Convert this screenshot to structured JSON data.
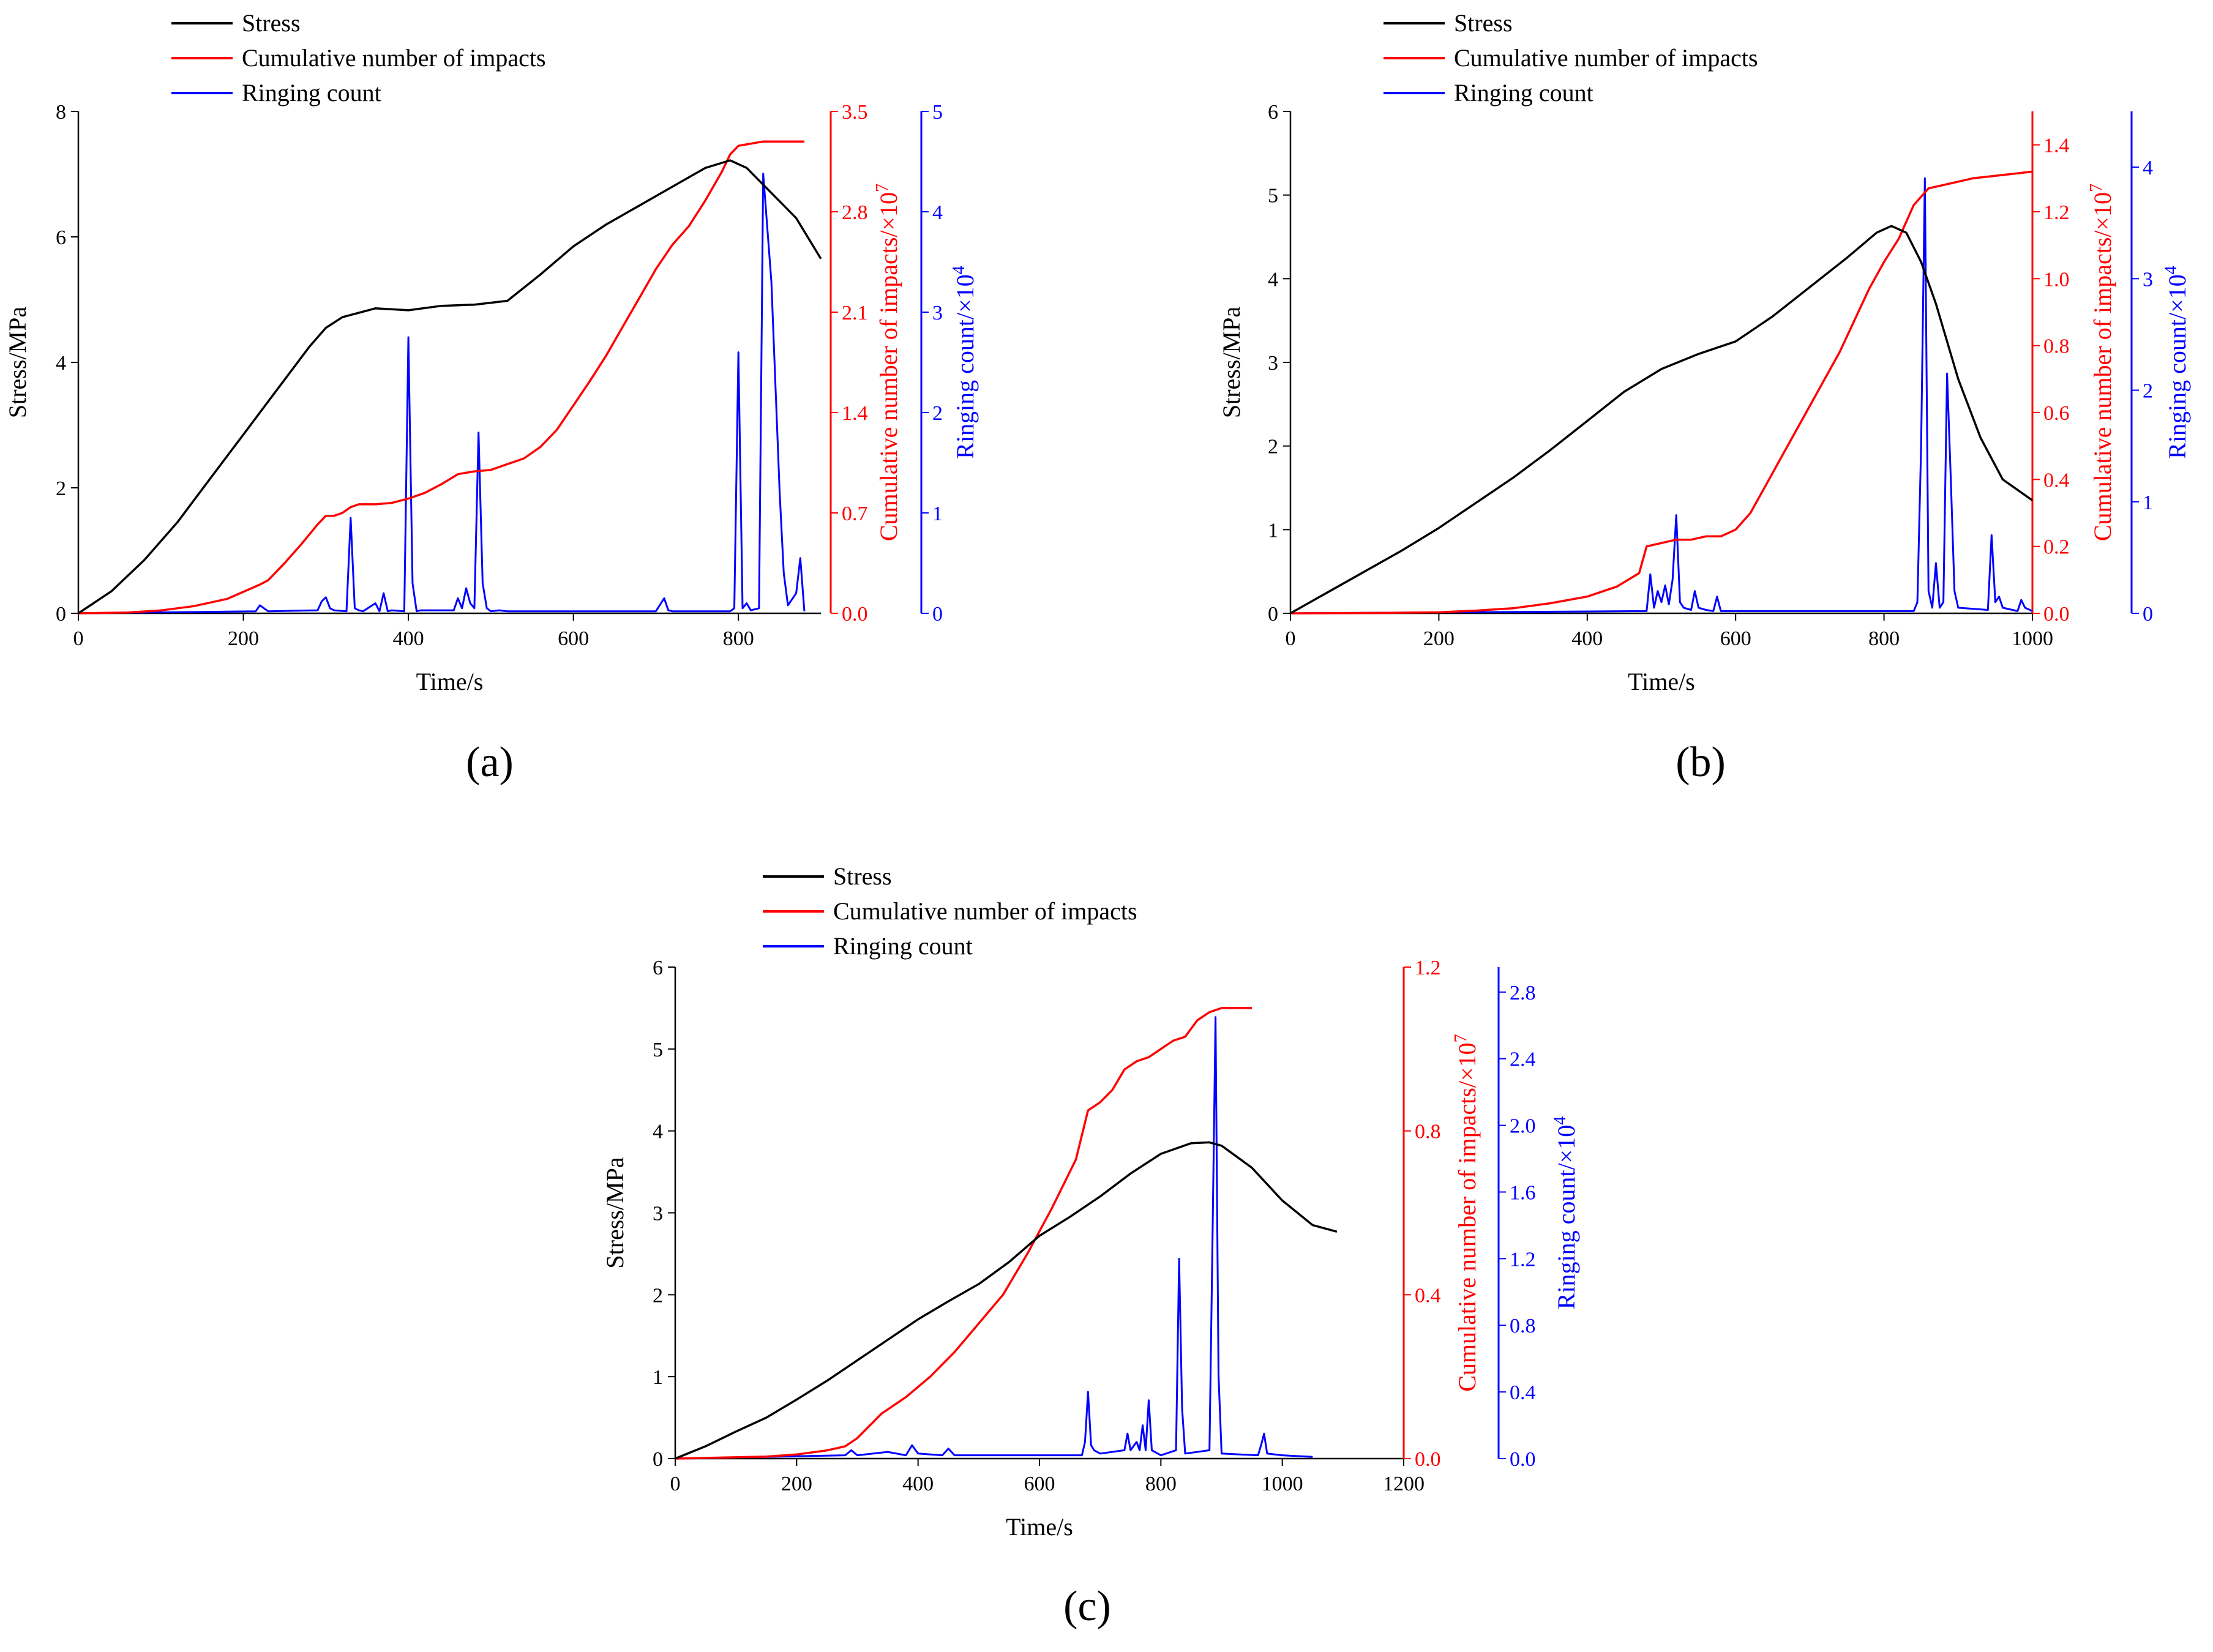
{
  "figure": {
    "legend_labels": [
      "Stress",
      "Cumulative number of impacts",
      "Ringing count"
    ],
    "colors": {
      "stress": "#000000",
      "impacts": "#ff0000",
      "ringing": "#0000ff"
    }
  },
  "chart_data": [
    {
      "type": "line",
      "panel": "(a)",
      "xlabel": "Time/s",
      "ylabel_left": "Stress/MPa",
      "ylabel_right1": "Cumulative number of impacts/×10",
      "ylabel_right1_sup": "7",
      "ylabel_right2": "Ringing count/×10",
      "ylabel_right2_sup": "4",
      "xlim": [
        0,
        900
      ],
      "xticks": [
        0,
        200,
        400,
        600,
        800
      ],
      "xtick_labels": [
        "0",
        "200",
        "400",
        "600",
        "800"
      ],
      "y_left_lim": [
        0,
        8
      ],
      "y_left_ticks": [
        0,
        2,
        4,
        6,
        8
      ],
      "y_left_tick_labels": [
        "0",
        "2",
        "4",
        "6",
        "8"
      ],
      "y_r1_lim": [
        0,
        3.5
      ],
      "y_r1_ticks": [
        0,
        0.7,
        1.4,
        2.1,
        2.8,
        3.5
      ],
      "y_r1_tick_labels": [
        "0.0",
        "0.7",
        "1.4",
        "2.1",
        "2.8",
        "3.5"
      ],
      "y_r2_lim": [
        0,
        5
      ],
      "y_r2_ticks": [
        0,
        1,
        2,
        3,
        4,
        5
      ],
      "y_r2_tick_labels": [
        "0",
        "1",
        "2",
        "3",
        "4",
        "5"
      ],
      "series": [
        {
          "name": "Stress",
          "axis": "left",
          "x": [
            0,
            40,
            80,
            120,
            160,
            200,
            240,
            280,
            300,
            320,
            360,
            400,
            440,
            480,
            520,
            560,
            600,
            640,
            680,
            720,
            760,
            790,
            810,
            840,
            870,
            900
          ],
          "y": [
            0,
            0.35,
            0.85,
            1.45,
            2.15,
            2.85,
            3.55,
            4.25,
            4.55,
            4.72,
            4.86,
            4.83,
            4.9,
            4.92,
            4.98,
            5.4,
            5.85,
            6.2,
            6.5,
            6.8,
            7.1,
            7.22,
            7.1,
            6.7,
            6.3,
            5.65
          ]
        },
        {
          "name": "Cumulative number of impacts",
          "axis": "right1",
          "x": [
            0,
            60,
            100,
            140,
            180,
            200,
            220,
            230,
            250,
            270,
            290,
            300,
            310,
            320,
            330,
            340,
            360,
            380,
            400,
            420,
            440,
            460,
            480,
            500,
            520,
            540,
            560,
            580,
            600,
            620,
            640,
            660,
            680,
            700,
            720,
            740,
            760,
            780,
            790,
            800,
            810,
            830,
            850,
            880
          ],
          "y": [
            0,
            0.005,
            0.02,
            0.05,
            0.1,
            0.15,
            0.2,
            0.23,
            0.35,
            0.48,
            0.62,
            0.68,
            0.68,
            0.7,
            0.74,
            0.76,
            0.76,
            0.77,
            0.8,
            0.84,
            0.9,
            0.97,
            0.99,
            1.0,
            1.04,
            1.08,
            1.16,
            1.28,
            1.45,
            1.62,
            1.8,
            2.0,
            2.2,
            2.4,
            2.57,
            2.7,
            2.88,
            3.08,
            3.2,
            3.26,
            3.27,
            3.29,
            3.29,
            3.29
          ]
        },
        {
          "name": "Ringing count",
          "axis": "right2",
          "x": [
            0,
            215,
            220,
            225,
            230,
            290,
            295,
            300,
            305,
            310,
            325,
            330,
            335,
            340,
            345,
            360,
            365,
            370,
            375,
            380,
            395,
            400,
            405,
            410,
            415,
            455,
            460,
            465,
            470,
            475,
            480,
            485,
            490,
            495,
            500,
            510,
            520,
            700,
            710,
            715,
            720,
            790,
            795,
            800,
            805,
            810,
            815,
            825,
            830,
            840,
            850,
            855,
            860,
            870,
            875,
            880
          ],
          "y": [
            0,
            0.02,
            0.08,
            0.05,
            0.02,
            0.03,
            0.12,
            0.16,
            0.05,
            0.03,
            0.02,
            0.95,
            0.05,
            0.03,
            0.02,
            0.1,
            0.02,
            0.2,
            0.02,
            0.03,
            0.02,
            2.75,
            0.3,
            0.02,
            0.03,
            0.03,
            0.15,
            0.05,
            0.25,
            0.1,
            0.05,
            1.8,
            0.3,
            0.05,
            0.02,
            0.03,
            0.02,
            0.02,
            0.15,
            0.03,
            0.02,
            0.02,
            0.05,
            2.6,
            0.05,
            0.1,
            0.03,
            0.05,
            4.38,
            3.3,
            1.2,
            0.4,
            0.08,
            0.2,
            0.55,
            0.02
          ]
        }
      ]
    },
    {
      "type": "line",
      "panel": "(b)",
      "xlabel": "Time/s",
      "ylabel_left": "Stress/MPa",
      "ylabel_right1": "Cumulative number of impacts/×10",
      "ylabel_right1_sup": "7",
      "ylabel_right2": "Ringing count/×10",
      "ylabel_right2_sup": "4",
      "xlim": [
        0,
        1000
      ],
      "xticks": [
        0,
        200,
        400,
        600,
        800,
        1000
      ],
      "xtick_labels": [
        "0",
        "200",
        "400",
        "600",
        "800",
        "1000"
      ],
      "y_left_lim": [
        0,
        6
      ],
      "y_left_ticks": [
        0,
        1,
        2,
        3,
        4,
        5,
        6
      ],
      "y_left_tick_labels": [
        "0",
        "1",
        "2",
        "3",
        "4",
        "5",
        "6"
      ],
      "y_r1_lim": [
        0,
        1.5
      ],
      "y_r1_ticks": [
        0,
        0.2,
        0.4,
        0.6,
        0.8,
        1.0,
        1.2,
        1.4
      ],
      "y_r1_tick_labels": [
        "0.0",
        "0.2",
        "0.4",
        "0.6",
        "0.8",
        "1.0",
        "1.2",
        "1.4"
      ],
      "y_r2_lim": [
        0,
        4.5
      ],
      "y_r2_ticks": [
        0,
        1,
        2,
        3,
        4
      ],
      "y_r2_tick_labels": [
        "0",
        "1",
        "2",
        "3",
        "4"
      ],
      "series": [
        {
          "name": "Stress",
          "axis": "left",
          "x": [
            0,
            50,
            100,
            150,
            200,
            250,
            300,
            350,
            400,
            450,
            500,
            550,
            600,
            650,
            700,
            750,
            790,
            810,
            830,
            850,
            870,
            900,
            930,
            960,
            1000
          ],
          "y": [
            0,
            0.25,
            0.5,
            0.75,
            1.02,
            1.32,
            1.62,
            1.95,
            2.3,
            2.65,
            2.92,
            3.1,
            3.25,
            3.55,
            3.9,
            4.25,
            4.55,
            4.63,
            4.55,
            4.2,
            3.7,
            2.8,
            2.1,
            1.6,
            1.35
          ]
        },
        {
          "name": "Cumulative number of impacts",
          "axis": "right1",
          "x": [
            0,
            120,
            200,
            250,
            300,
            350,
            400,
            440,
            470,
            480,
            500,
            520,
            540,
            560,
            580,
            600,
            620,
            640,
            660,
            700,
            740,
            780,
            800,
            820,
            840,
            860,
            880,
            920,
            960,
            1000
          ],
          "y": [
            0,
            0.001,
            0.003,
            0.008,
            0.015,
            0.03,
            0.05,
            0.08,
            0.12,
            0.2,
            0.21,
            0.22,
            0.22,
            0.23,
            0.23,
            0.25,
            0.3,
            0.38,
            0.46,
            0.62,
            0.78,
            0.97,
            1.05,
            1.12,
            1.22,
            1.27,
            1.28,
            1.3,
            1.31,
            1.32
          ]
        },
        {
          "name": "Ringing count",
          "axis": "right2",
          "x": [
            0,
            480,
            485,
            490,
            495,
            500,
            505,
            510,
            515,
            520,
            525,
            530,
            540,
            545,
            550,
            560,
            570,
            575,
            580,
            600,
            840,
            845,
            850,
            855,
            860,
            865,
            870,
            875,
            880,
            885,
            890,
            895,
            900,
            940,
            945,
            950,
            955,
            960,
            980,
            985,
            990,
            1000
          ],
          "y": [
            0,
            0.02,
            0.35,
            0.05,
            0.2,
            0.1,
            0.25,
            0.08,
            0.3,
            0.88,
            0.1,
            0.05,
            0.03,
            0.2,
            0.05,
            0.03,
            0.02,
            0.15,
            0.02,
            0.02,
            0.02,
            0.1,
            1.5,
            3.9,
            0.2,
            0.05,
            0.45,
            0.05,
            0.1,
            2.15,
            1.2,
            0.2,
            0.05,
            0.03,
            0.7,
            0.1,
            0.15,
            0.05,
            0.02,
            0.12,
            0.05,
            0.02
          ]
        }
      ]
    },
    {
      "type": "line",
      "panel": "(c)",
      "xlabel": "Time/s",
      "ylabel_left": "Stress/MPa",
      "ylabel_right1": "Cumulative number of impacts/×10",
      "ylabel_right1_sup": "7",
      "ylabel_right2": "Ringing count/×10",
      "ylabel_right2_sup": "4",
      "xlim": [
        0,
        1200
      ],
      "xticks": [
        0,
        200,
        400,
        600,
        800,
        1000,
        1200
      ],
      "xtick_labels": [
        "0",
        "200",
        "400",
        "600",
        "800",
        "1000",
        "1200"
      ],
      "y_left_lim": [
        0,
        6
      ],
      "y_left_ticks": [
        0,
        1,
        2,
        3,
        4,
        5,
        6
      ],
      "y_left_tick_labels": [
        "0",
        "1",
        "2",
        "3",
        "4",
        "5",
        "6"
      ],
      "y_r1_lim": [
        0,
        1.2
      ],
      "y_r1_ticks": [
        0,
        0.4,
        0.8,
        1.2
      ],
      "y_r1_tick_labels": [
        "0.0",
        "0.4",
        "0.8",
        "1.2"
      ],
      "y_r2_lim": [
        0,
        2.95
      ],
      "y_r2_ticks": [
        0,
        0.4,
        0.8,
        1.2,
        1.6,
        2.0,
        2.4,
        2.8
      ],
      "y_r2_tick_labels": [
        "0.0",
        "0.4",
        "0.8",
        "1.2",
        "1.6",
        "2.0",
        "2.4",
        "2.8"
      ],
      "series": [
        {
          "name": "Stress",
          "axis": "left",
          "x": [
            0,
            50,
            100,
            150,
            200,
            250,
            300,
            350,
            400,
            450,
            500,
            550,
            600,
            650,
            700,
            750,
            800,
            850,
            880,
            900,
            950,
            1000,
            1050,
            1090
          ],
          "y": [
            0,
            0.15,
            0.33,
            0.5,
            0.72,
            0.95,
            1.2,
            1.45,
            1.7,
            1.92,
            2.13,
            2.4,
            2.72,
            2.95,
            3.2,
            3.48,
            3.72,
            3.85,
            3.86,
            3.82,
            3.55,
            3.15,
            2.85,
            2.77
          ]
        },
        {
          "name": "Cumulative number of impacts",
          "axis": "right1",
          "x": [
            0,
            150,
            200,
            250,
            280,
            300,
            320,
            340,
            380,
            420,
            460,
            500,
            540,
            580,
            620,
            660,
            680,
            700,
            720,
            740,
            760,
            780,
            800,
            820,
            840,
            860,
            880,
            900,
            920,
            950
          ],
          "y": [
            0,
            0.005,
            0.01,
            0.02,
            0.03,
            0.05,
            0.08,
            0.11,
            0.15,
            0.2,
            0.26,
            0.33,
            0.4,
            0.5,
            0.61,
            0.73,
            0.85,
            0.87,
            0.9,
            0.95,
            0.97,
            0.98,
            1.0,
            1.02,
            1.03,
            1.07,
            1.09,
            1.1,
            1.1,
            1.1
          ]
        },
        {
          "name": "Ringing count",
          "axis": "right2",
          "x": [
            0,
            280,
            290,
            300,
            350,
            380,
            390,
            400,
            440,
            450,
            460,
            500,
            670,
            675,
            680,
            685,
            690,
            700,
            740,
            745,
            750,
            760,
            765,
            770,
            775,
            780,
            785,
            800,
            825,
            830,
            835,
            840,
            880,
            885,
            890,
            895,
            900,
            960,
            965,
            970,
            975,
            1000,
            1050
          ],
          "y": [
            0,
            0.02,
            0.05,
            0.02,
            0.04,
            0.02,
            0.08,
            0.03,
            0.02,
            0.06,
            0.02,
            0.02,
            0.02,
            0.1,
            0.4,
            0.08,
            0.05,
            0.03,
            0.05,
            0.15,
            0.05,
            0.1,
            0.05,
            0.2,
            0.05,
            0.35,
            0.05,
            0.02,
            0.05,
            1.2,
            0.3,
            0.03,
            0.05,
            1.3,
            2.65,
            0.5,
            0.03,
            0.02,
            0.08,
            0.15,
            0.03,
            0.02,
            0.01
          ]
        }
      ]
    }
  ]
}
